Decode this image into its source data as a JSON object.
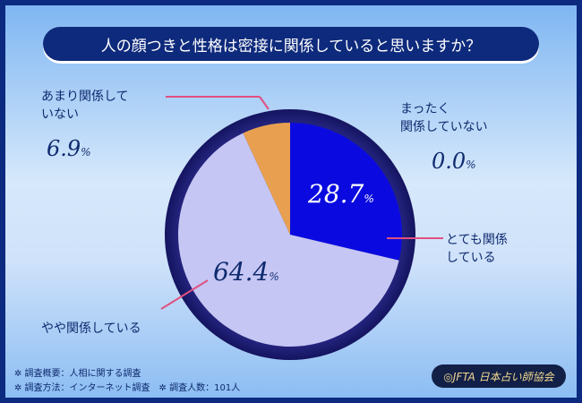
{
  "title": "人の顔つきと性格は密接に関係していると思いますか？",
  "chart_data": {
    "type": "pie",
    "start": "12 o'clock, clockwise",
    "categories": [
      "とても関係している",
      "まったく関係していない",
      "やや関係している",
      "あまり関係していない"
    ],
    "values": [
      28.7,
      0.0,
      64.4,
      6.9
    ],
    "unit": "%",
    "colors": [
      "#0a0ae0",
      "#0a0ae0",
      "#c6c6f4",
      "#e8a050"
    ]
  },
  "labels": {
    "very": {
      "text1": "とても関係",
      "text2": "している",
      "pct": "28.7"
    },
    "none": {
      "text1": "まったく",
      "text2": "関係していない",
      "pct": "0.0"
    },
    "somewhat": {
      "text": "やや関係している",
      "pct": "64.4"
    },
    "little": {
      "text1": "あまり関係して",
      "text2": "いない",
      "pct": "6.9"
    },
    "pct_sign": "%"
  },
  "footer": {
    "line1": "✲ 調査概要：人相に関する調査",
    "line2": "✲ 調査方法：インターネット調査　✲ 調査人数：101人"
  },
  "logo": {
    "text": "◎JFTA 日本占い師協会"
  }
}
